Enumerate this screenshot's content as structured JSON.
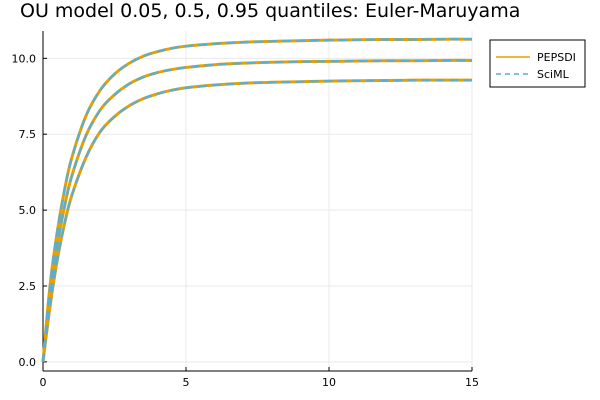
{
  "chart_data": {
    "type": "line",
    "title": "OU model 0.05, 0.5, 0.95 quantiles: Euler-Maruyama",
    "xlabel": "",
    "ylabel": "",
    "xlim": [
      0,
      15
    ],
    "ylim": [
      -0.3,
      10.9
    ],
    "x_ticks": [
      0,
      5,
      10,
      15
    ],
    "x_tick_labels": [
      "0",
      "5",
      "10",
      "15"
    ],
    "y_ticks": [
      0.0,
      2.5,
      5.0,
      7.5,
      10.0
    ],
    "y_tick_labels": [
      "0.0",
      "2.5",
      "5.0",
      "7.5",
      "10.0"
    ],
    "grid": true,
    "legend_position": "top-right",
    "x": [
      0,
      0.25,
      0.5,
      0.75,
      1,
      1.5,
      2,
      2.5,
      3,
      3.5,
      4,
      4.5,
      5,
      6,
      7,
      8,
      9,
      10,
      11,
      12,
      13,
      14,
      15
    ],
    "series": [
      {
        "name": "PEPSDI",
        "color": "#e8a000",
        "style": "solid",
        "quantiles": [
          {
            "quantile": 0.05,
            "values": [
              0,
              1.85,
              3.36,
              4.54,
              5.46,
              6.73,
              7.58,
              8.08,
              8.43,
              8.67,
              8.83,
              8.95,
              9.03,
              9.12,
              9.18,
              9.21,
              9.23,
              9.25,
              9.26,
              9.27,
              9.28,
              9.28,
              9.28
            ]
          },
          {
            "quantile": 0.5,
            "values": [
              0,
              2.2,
              3.85,
              5.1,
              6.1,
              7.45,
              8.3,
              8.8,
              9.15,
              9.38,
              9.53,
              9.63,
              9.7,
              9.79,
              9.84,
              9.87,
              9.89,
              9.9,
              9.91,
              9.92,
              9.92,
              9.93,
              9.93
            ]
          },
          {
            "quantile": 0.95,
            "values": [
              0,
              2.55,
              4.3,
              5.65,
              6.7,
              8.1,
              8.95,
              9.48,
              9.83,
              10.07,
              10.22,
              10.33,
              10.4,
              10.48,
              10.53,
              10.56,
              10.58,
              10.6,
              10.61,
              10.62,
              10.62,
              10.63,
              10.63
            ]
          }
        ]
      },
      {
        "name": "SciML",
        "color": "#5eaec9",
        "style": "dashed",
        "quantiles": [
          {
            "quantile": 0.05,
            "values": [
              0,
              1.85,
              3.36,
              4.54,
              5.46,
              6.73,
              7.58,
              8.08,
              8.43,
              8.67,
              8.83,
              8.95,
              9.03,
              9.12,
              9.18,
              9.21,
              9.23,
              9.25,
              9.26,
              9.27,
              9.28,
              9.28,
              9.28
            ]
          },
          {
            "quantile": 0.5,
            "values": [
              0,
              2.2,
              3.85,
              5.1,
              6.1,
              7.45,
              8.3,
              8.8,
              9.15,
              9.38,
              9.53,
              9.63,
              9.7,
              9.79,
              9.84,
              9.87,
              9.89,
              9.9,
              9.91,
              9.92,
              9.92,
              9.93,
              9.93
            ]
          },
          {
            "quantile": 0.95,
            "values": [
              0,
              2.55,
              4.3,
              5.65,
              6.7,
              8.1,
              8.95,
              9.48,
              9.83,
              10.07,
              10.22,
              10.33,
              10.4,
              10.48,
              10.53,
              10.56,
              10.58,
              10.6,
              10.61,
              10.62,
              10.62,
              10.63,
              10.63
            ]
          }
        ]
      }
    ]
  }
}
